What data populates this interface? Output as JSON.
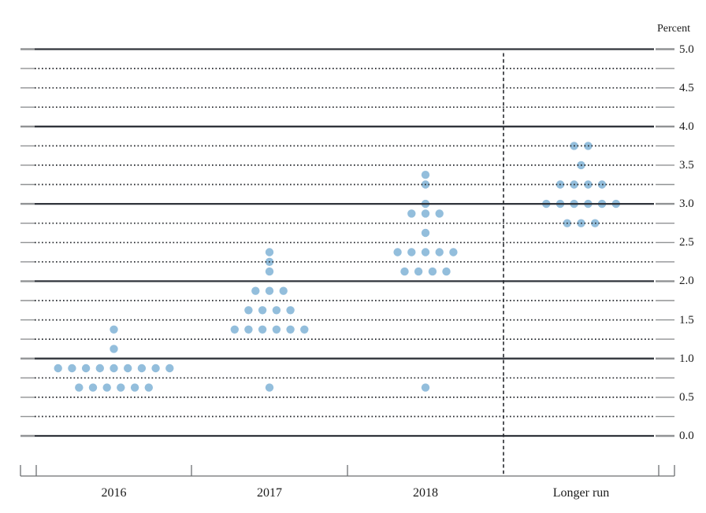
{
  "chart_data": {
    "type": "scatter",
    "subtype": "fomc-dot-plot",
    "unit_label": "Percent",
    "title": "",
    "categories": [
      "2016",
      "2017",
      "2018",
      "Longer run"
    ],
    "y_axis": {
      "min": 0.0,
      "max": 5.0,
      "grid_step": 0.25,
      "label_step": 0.5,
      "solid_line_step": 1.0,
      "tick_labels": [
        "5.0",
        "4.5",
        "4.0",
        "3.5",
        "3.0",
        "2.5",
        "2.0",
        "1.5",
        "1.0",
        "0.5",
        "0.0"
      ]
    },
    "series": [
      {
        "category": "2016",
        "dots": [
          {
            "rate": 1.375,
            "count": 1
          },
          {
            "rate": 1.125,
            "count": 1
          },
          {
            "rate": 0.875,
            "count": 9
          },
          {
            "rate": 0.625,
            "count": 6
          }
        ]
      },
      {
        "category": "2017",
        "dots": [
          {
            "rate": 2.375,
            "count": 1
          },
          {
            "rate": 2.25,
            "count": 1
          },
          {
            "rate": 2.125,
            "count": 1
          },
          {
            "rate": 1.875,
            "count": 3
          },
          {
            "rate": 1.625,
            "count": 4
          },
          {
            "rate": 1.375,
            "count": 6
          },
          {
            "rate": 0.625,
            "count": 1
          }
        ]
      },
      {
        "category": "2018",
        "dots": [
          {
            "rate": 3.375,
            "count": 1
          },
          {
            "rate": 3.25,
            "count": 1
          },
          {
            "rate": 3.0,
            "count": 1
          },
          {
            "rate": 2.875,
            "count": 3
          },
          {
            "rate": 2.625,
            "count": 1
          },
          {
            "rate": 2.375,
            "count": 5
          },
          {
            "rate": 2.125,
            "count": 4
          },
          {
            "rate": 0.625,
            "count": 1
          }
        ]
      },
      {
        "category": "Longer run",
        "dots": [
          {
            "rate": 3.75,
            "count": 2
          },
          {
            "rate": 3.5,
            "count": 1
          },
          {
            "rate": 3.25,
            "count": 4
          },
          {
            "rate": 3.0,
            "count": 6
          },
          {
            "rate": 2.75,
            "count": 3
          }
        ]
      }
    ],
    "separator": {
      "style": "dashed",
      "between": [
        "2018",
        "Longer run"
      ]
    },
    "legend": "none",
    "grid": "on"
  },
  "colors": {
    "dot": "#93BEDC",
    "grid_solid": "#30343B",
    "grid_dotted": "#26292E",
    "grid_end_segment": "#909294",
    "axis": "#6D6F72",
    "separator": "#26292E",
    "text": "#1B1B1B",
    "background": "#FFFFFF"
  }
}
